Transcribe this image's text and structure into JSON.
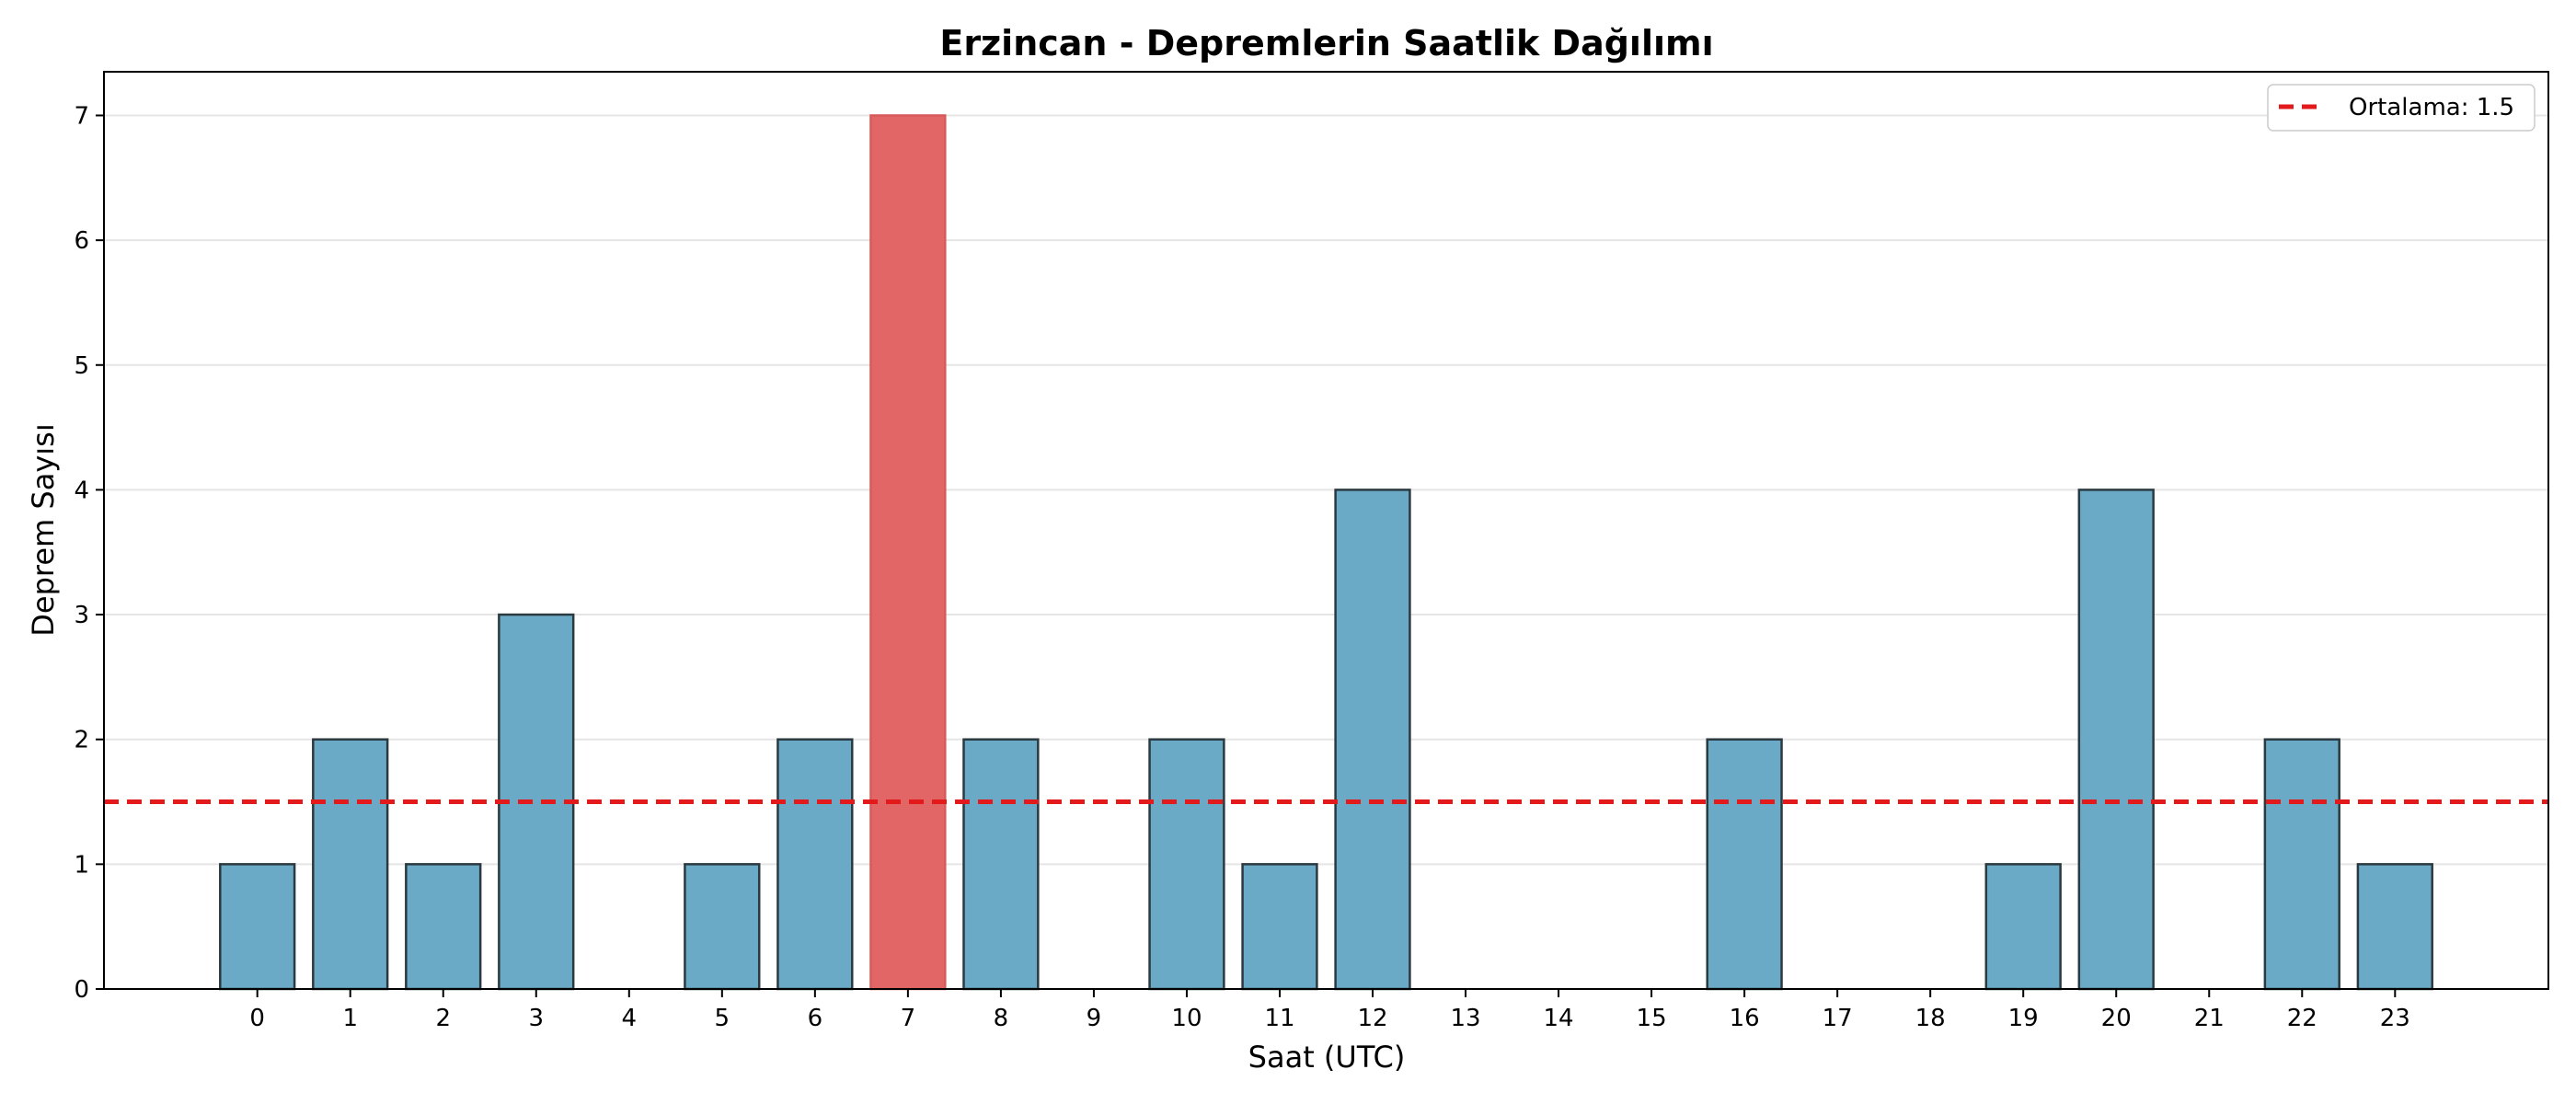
{
  "chart_data": {
    "type": "bar",
    "title": "Erzincan - Depremlerin Saatlik Dağılımı",
    "xlabel": "Saat (UTC)",
    "ylabel": "Deprem Sayısı",
    "categories": [
      "0",
      "1",
      "2",
      "3",
      "4",
      "5",
      "6",
      "7",
      "8",
      "9",
      "10",
      "11",
      "12",
      "13",
      "14",
      "15",
      "16",
      "17",
      "18",
      "19",
      "20",
      "21",
      "22",
      "23"
    ],
    "values": [
      1,
      2,
      1,
      3,
      0,
      1,
      2,
      7,
      2,
      0,
      2,
      1,
      4,
      0,
      0,
      0,
      2,
      0,
      0,
      1,
      4,
      0,
      2,
      1
    ],
    "ylim": [
      0,
      7.35
    ],
    "yticks": [
      0,
      1,
      2,
      3,
      4,
      5,
      6,
      7
    ],
    "xlim": [
      -1.65,
      24.65
    ],
    "highlight_index": 7,
    "grid": "y",
    "legend": {
      "position": "top-right",
      "entries": [
        {
          "label": "Ortalama: 1.5",
          "style": "dashed-line",
          "color": "#e31a1c"
        }
      ]
    },
    "mean_line": {
      "value": 1.5
    },
    "colors": {
      "bar": "#6aaac6",
      "bar_edge": "#2b3a40",
      "highlight": "#e36666",
      "highlight_edge": "#d85a5a",
      "mean": "#e31a1c",
      "grid": "#e5e5e5"
    }
  }
}
